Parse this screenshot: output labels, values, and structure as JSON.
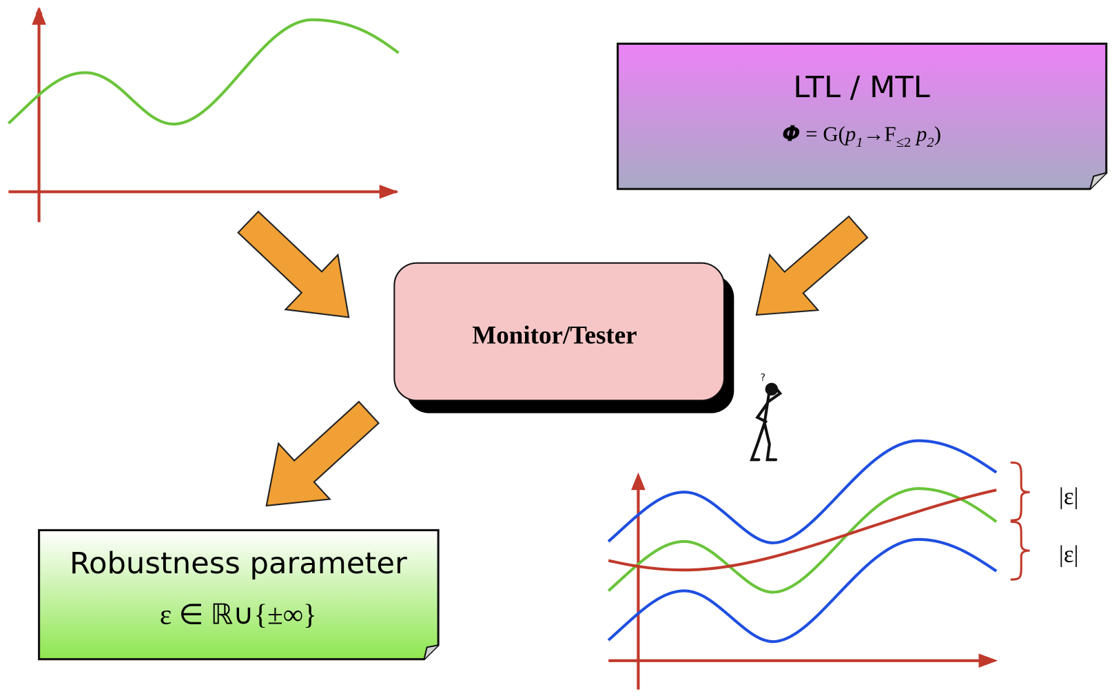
{
  "ltl_box": {
    "title": "LTL / MTL",
    "formula": {
      "phi": "Φ",
      "eq": " = G(",
      "p1": "p",
      "sub1": "1",
      "arrow": "→F",
      "sub2": "≤2",
      "p2": " p",
      "sub3": "2",
      "close": ")"
    }
  },
  "monitor_box": {
    "label": "Monitor/Tester"
  },
  "figure": {
    "question": "?"
  },
  "robustness_box": {
    "title": "Robustness parameter",
    "formula": "ε ∈ ℝ∪{±∞}"
  },
  "epsilon_labels": [
    "|ε|",
    "|ε|"
  ]
}
